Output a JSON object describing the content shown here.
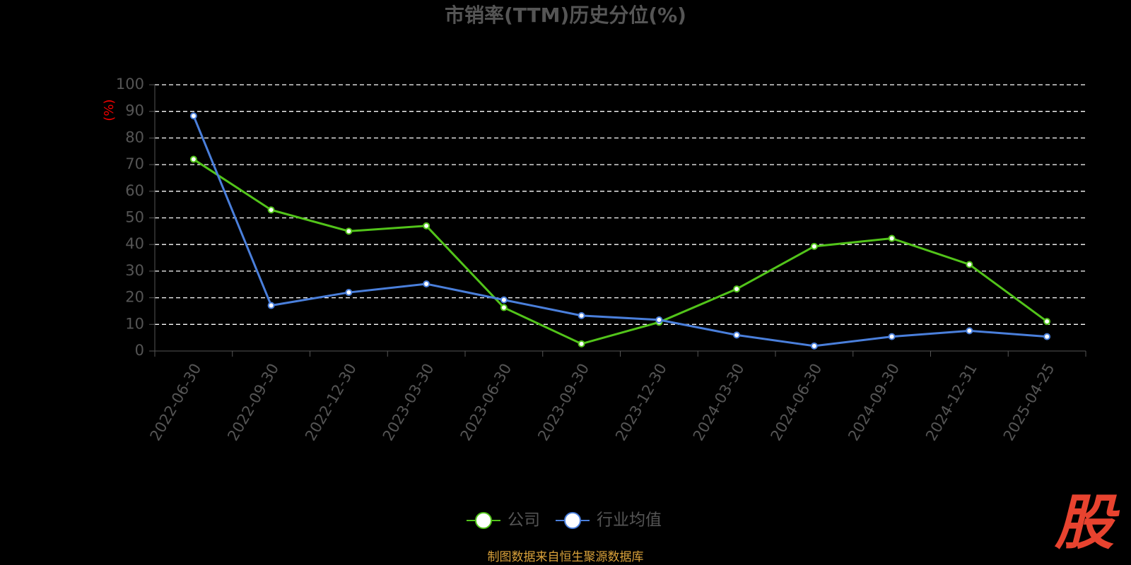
{
  "chart_data": {
    "type": "line",
    "title": "市销率(TTM)历史分位(%)",
    "y_label": "(%)",
    "categories": [
      "2022-06-30",
      "2022-09-30",
      "2022-12-30",
      "2023-03-30",
      "2023-06-30",
      "2023-09-30",
      "2023-12-30",
      "2024-03-30",
      "2024-06-30",
      "2024-09-30",
      "2024-12-31",
      "2025-04-25"
    ],
    "series": [
      {
        "name": "公司",
        "color": "#52c41a",
        "values": [
          72,
          53,
          45,
          47,
          16.3,
          2.7,
          10.8,
          23.3,
          39.3,
          42.3,
          32.5,
          11.1
        ]
      },
      {
        "name": "行业均值",
        "color": "#4a7fdb",
        "values": [
          88.3,
          17.1,
          22,
          25.2,
          19.2,
          13.3,
          11.7,
          6,
          1.9,
          5.4,
          7.6,
          5.4
        ]
      }
    ],
    "ylim": [
      0,
      100
    ],
    "yticks": [
      0,
      10,
      20,
      30,
      40,
      50,
      60,
      70,
      80,
      90,
      100
    ],
    "grid": true,
    "legend": "bottom",
    "source": "制图数据来自恒生聚源数据库",
    "watermark": "股"
  }
}
